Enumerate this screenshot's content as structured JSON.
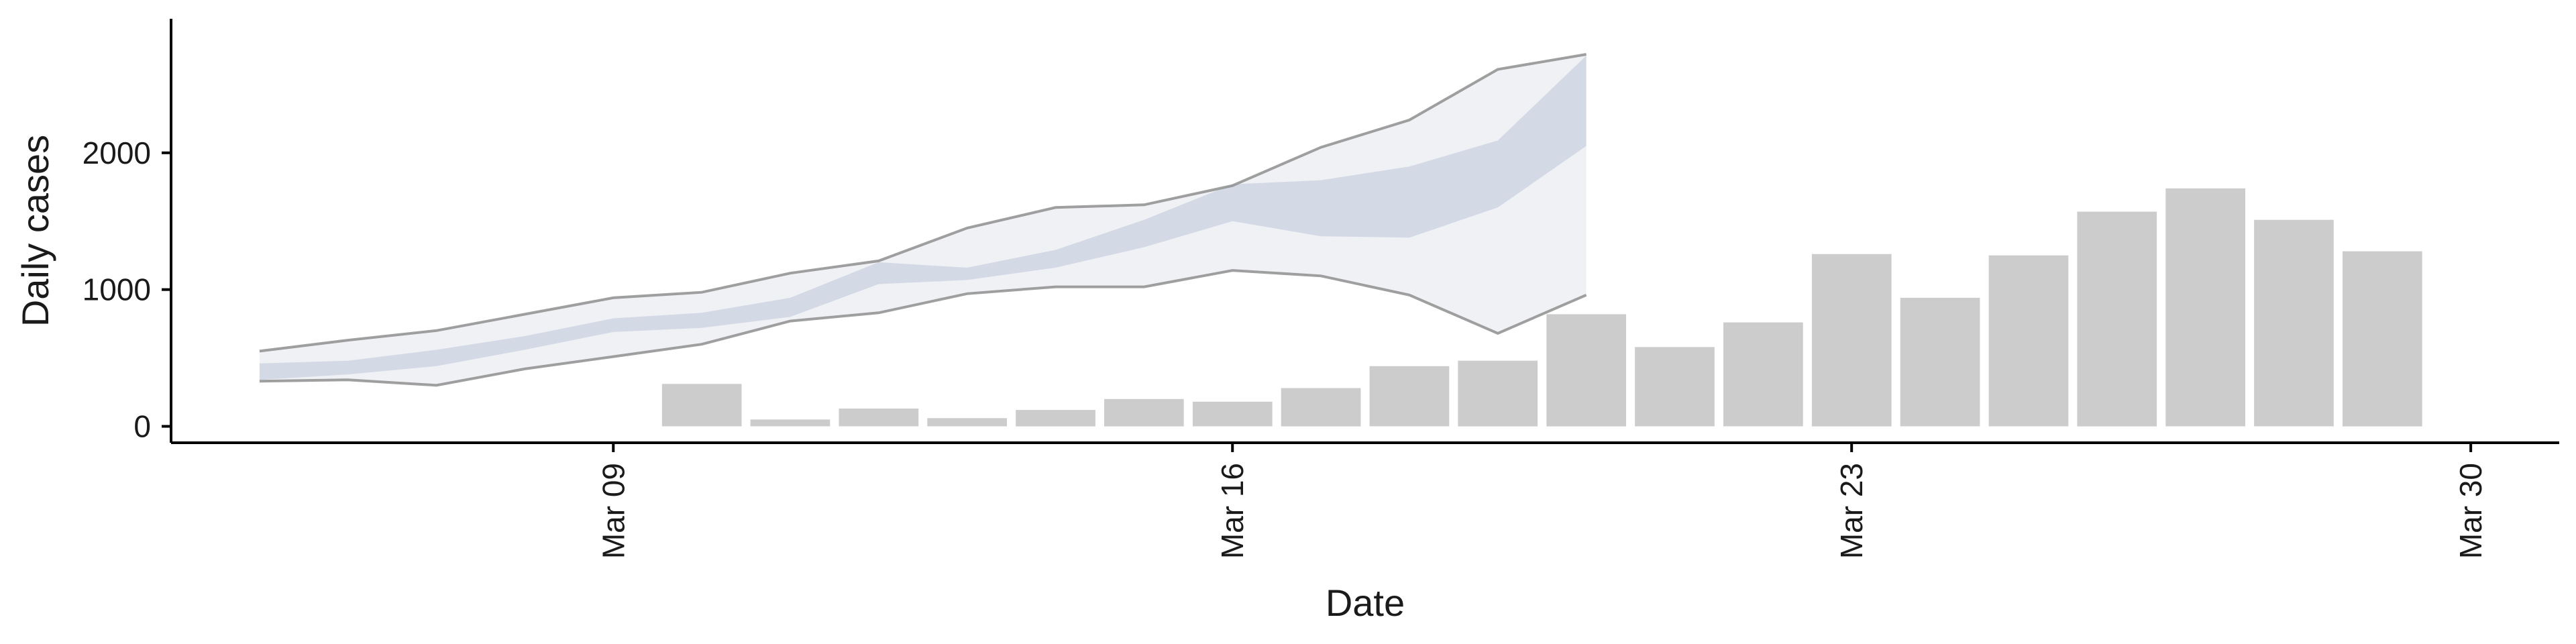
{
  "chart_data": {
    "type": "bar",
    "xlabel": "Date",
    "ylabel": "Daily cases",
    "x_ticks": [
      "Mar 09",
      "Mar 16",
      "Mar 23",
      "Mar 30"
    ],
    "y_ticks": [
      0,
      1000,
      2000
    ],
    "xlim": [
      "2020-03-04",
      "2020-03-31"
    ],
    "ylim": [
      -120,
      2980
    ],
    "grid": false,
    "legend": "none",
    "colors": {
      "bars": "#cccccc",
      "outer_band": "#dcdfe8",
      "inner_band": "#c9cfe0",
      "outer_edge": "#888888",
      "axis": "#000000"
    },
    "bars": {
      "dates": [
        "2020-03-10",
        "2020-03-11",
        "2020-03-12",
        "2020-03-13",
        "2020-03-14",
        "2020-03-15",
        "2020-03-16",
        "2020-03-17",
        "2020-03-18",
        "2020-03-19",
        "2020-03-20",
        "2020-03-21",
        "2020-03-22",
        "2020-03-23",
        "2020-03-24",
        "2020-03-25",
        "2020-03-26",
        "2020-03-27",
        "2020-03-28",
        "2020-03-29"
      ],
      "values": [
        310,
        50,
        130,
        60,
        120,
        200,
        180,
        280,
        440,
        480,
        820,
        580,
        760,
        1260,
        940,
        1250,
        1570,
        1740,
        1510,
        1280
      ]
    },
    "nowcast": {
      "dates": [
        "2020-03-05",
        "2020-03-06",
        "2020-03-07",
        "2020-03-08",
        "2020-03-09",
        "2020-03-10",
        "2020-03-11",
        "2020-03-12",
        "2020-03-13",
        "2020-03-14",
        "2020-03-15",
        "2020-03-16",
        "2020-03-17",
        "2020-03-18",
        "2020-03-19",
        "2020-03-20"
      ],
      "outer_lower": [
        330,
        340,
        300,
        420,
        510,
        600,
        770,
        830,
        970,
        1020,
        1020,
        1140,
        1100,
        960,
        680,
        960
      ],
      "outer_upper": [
        550,
        630,
        700,
        820,
        940,
        980,
        1120,
        1210,
        1450,
        1600,
        1620,
        1760,
        2040,
        2240,
        2610,
        2720
      ],
      "inner_lower": [
        340,
        380,
        440,
        560,
        690,
        720,
        800,
        1040,
        1070,
        1160,
        1310,
        1500,
        1390,
        1380,
        1600,
        2050
      ],
      "inner_upper": [
        460,
        480,
        560,
        660,
        790,
        830,
        940,
        1200,
        1160,
        1290,
        1510,
        1770,
        1800,
        1900,
        2090,
        2710
      ]
    }
  }
}
